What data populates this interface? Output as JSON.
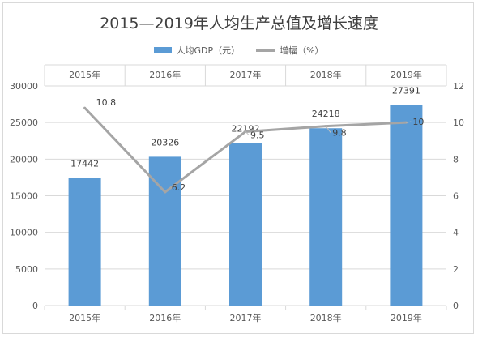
{
  "chart_data": {
    "type": "bar",
    "title": "2015—2019年人均生产总值及增长速度",
    "categories": [
      "2015年",
      "2016年",
      "2017年",
      "2018年",
      "2019年"
    ],
    "series": [
      {
        "name": "人均GDP（元）",
        "type": "bar",
        "axis": "left",
        "values": [
          17442,
          20326,
          22192,
          24218,
          27391
        ]
      },
      {
        "name": "增幅（%）",
        "type": "line",
        "axis": "right",
        "values": [
          10.8,
          6.2,
          9.5,
          9.8,
          10
        ]
      }
    ],
    "y_left": {
      "ylim": [
        0,
        30000
      ],
      "ticks": [
        0,
        5000,
        10000,
        15000,
        20000,
        25000,
        30000
      ]
    },
    "y_right": {
      "ylim": [
        0,
        12
      ],
      "ticks": [
        0,
        2,
        4,
        6,
        8,
        10,
        12
      ]
    },
    "colors": {
      "bar": "#5b9bd5",
      "line": "#a5a5a5",
      "grid": "#d9d9d9",
      "text": "#595959"
    },
    "grid": true,
    "legend_position": "top",
    "x_labels_top_and_bottom": true
  }
}
